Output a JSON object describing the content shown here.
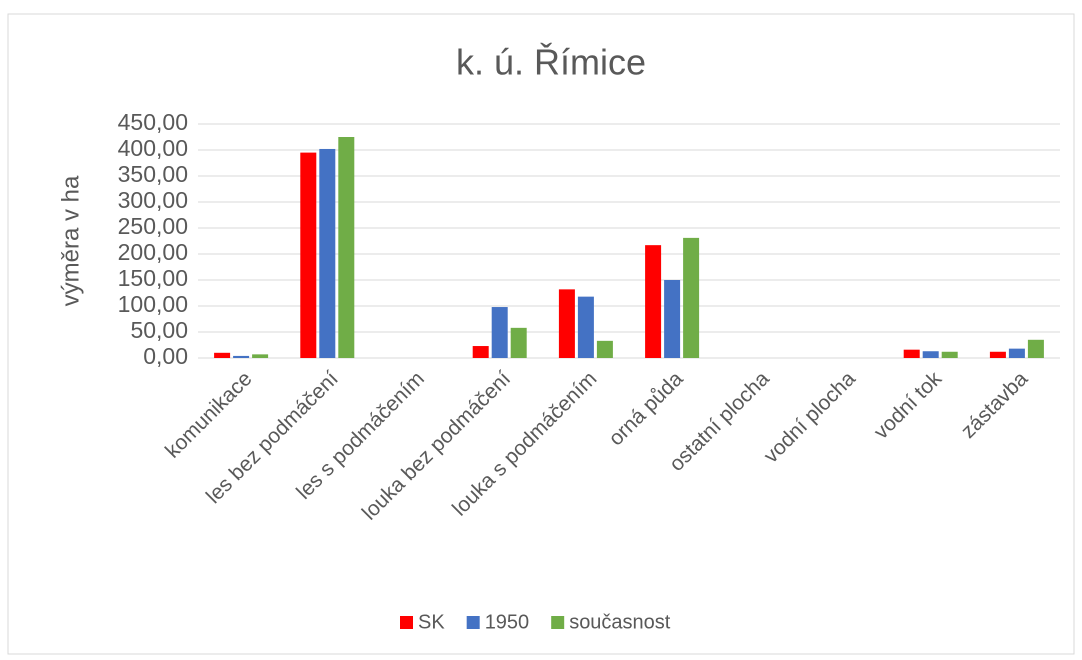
{
  "chart_data": {
    "type": "bar",
    "title": "k. ú. Římice",
    "y_label": "výměra v ha",
    "categories": [
      "komunikace",
      "les bez podmáčení",
      "les s podmáčením",
      "louka bez podmáčení",
      "louka s podmáčením",
      "orná půda",
      "ostatní plocha",
      "vodní plocha",
      "vodní tok",
      "zástavba"
    ],
    "series": [
      {
        "name": "SK",
        "color": "#ff0000",
        "values": [
          10,
          395,
          0,
          23,
          132,
          217,
          0,
          0,
          16,
          12
        ]
      },
      {
        "name": "1950",
        "color": "#4472c4",
        "values": [
          4,
          402,
          0,
          98,
          118,
          150,
          0,
          0,
          13,
          18
        ]
      },
      {
        "name": "současnost",
        "color": "#70ad47",
        "values": [
          7,
          425,
          0,
          58,
          33,
          231,
          0,
          0,
          12,
          35
        ]
      }
    ],
    "ylim": [
      0,
      450
    ],
    "yticks": [
      {
        "value": 0,
        "label": "0,00"
      },
      {
        "value": 50,
        "label": "50,00"
      },
      {
        "value": 100,
        "label": "100,00"
      },
      {
        "value": 150,
        "label": "150,00"
      },
      {
        "value": 200,
        "label": "200,00"
      },
      {
        "value": 250,
        "label": "250,00"
      },
      {
        "value": 300,
        "label": "300,00"
      },
      {
        "value": 350,
        "label": "350,00"
      },
      {
        "value": 400,
        "label": "400,00"
      },
      {
        "value": 450,
        "label": "450,00"
      }
    ],
    "grid": true,
    "legend": "bottom"
  }
}
